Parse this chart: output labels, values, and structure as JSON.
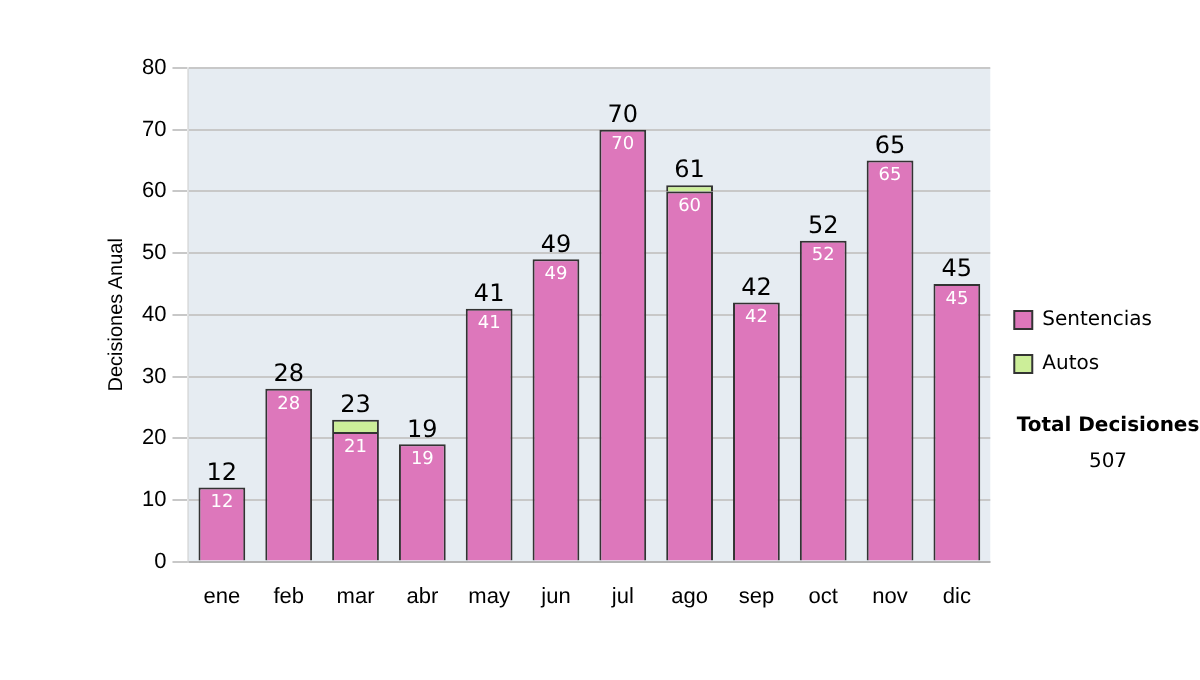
{
  "chart_data": {
    "type": "bar",
    "stacked": true,
    "ylabel": "Decisiones Anual",
    "categories": [
      "ene",
      "feb",
      "mar",
      "abr",
      "may",
      "jun",
      "jul",
      "ago",
      "sep",
      "oct",
      "nov",
      "dic"
    ],
    "series": [
      {
        "name": "Sentencias",
        "color": "#dd77bb",
        "values": [
          12,
          28,
          21,
          19,
          41,
          49,
          70,
          60,
          42,
          52,
          65,
          45
        ],
        "value_labels": [
          "12",
          "28",
          "21",
          "19",
          "41",
          "49",
          "70",
          "60",
          "42",
          "52",
          "65",
          "45"
        ]
      },
      {
        "name": "Autos",
        "color": "#ccee99",
        "values": [
          null,
          null,
          2,
          null,
          null,
          null,
          null,
          1,
          null,
          null,
          null,
          null
        ]
      }
    ],
    "totals": [
      "12",
      "28",
      "23",
      "19",
      "41",
      "49",
      "70",
      "61",
      "42",
      "52",
      "65",
      "45"
    ],
    "ylim": [
      0,
      80
    ],
    "yticks": [
      0,
      10,
      20,
      30,
      40,
      50,
      60,
      70,
      80
    ],
    "grid": "y",
    "legend": "right",
    "annotations": [
      "Total Decisiones",
      "507"
    ]
  }
}
